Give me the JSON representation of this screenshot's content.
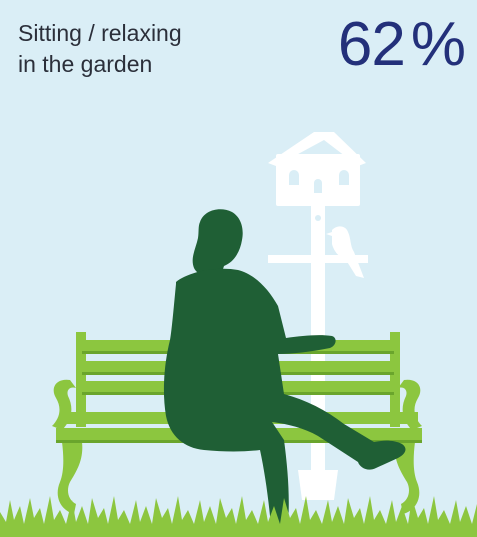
{
  "caption": {
    "line1": "Sitting / relaxing",
    "line2": "in the garden"
  },
  "stat": {
    "number": "62",
    "sign": "%"
  },
  "colors": {
    "sky": "#daeef6",
    "bench": "#8cc63f",
    "bench_dark": "#6aa52c",
    "silhouette": "#1f5f35",
    "birdhouse": "#ffffff",
    "grass": "#8cc63f",
    "caption_text": "#2b2f3a",
    "number_text": "#23307a"
  },
  "icons": {
    "person": "seated-man-silhouette",
    "bench": "park-bench",
    "birdhouse": "birdhouse-on-pole",
    "bird": "perched-bird",
    "grass": "grass-strip"
  }
}
